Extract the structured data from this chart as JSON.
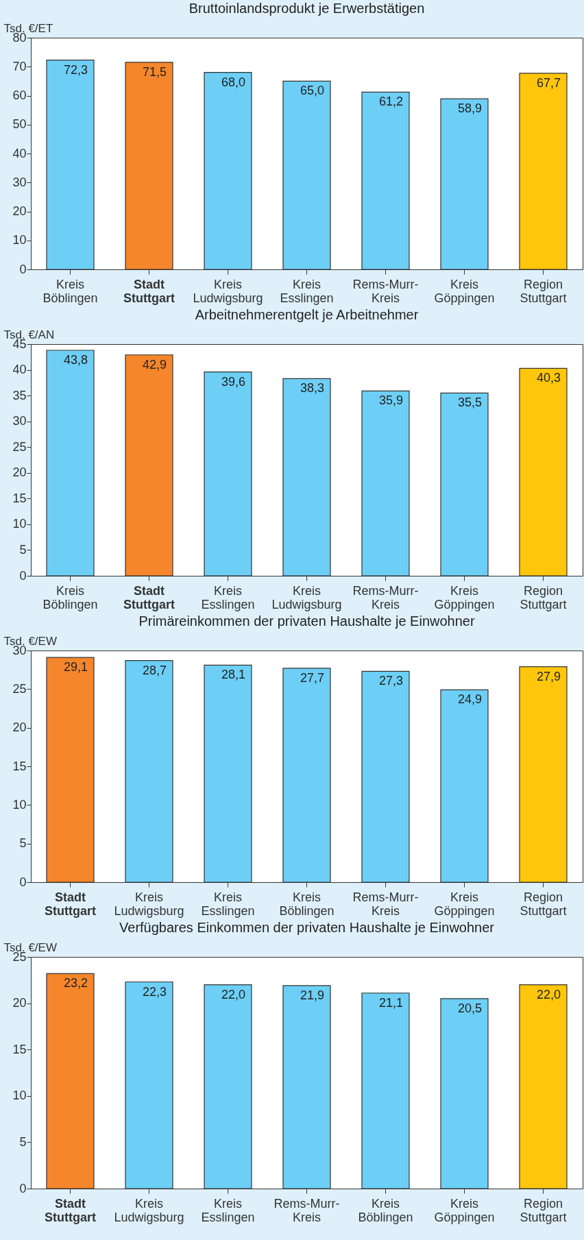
{
  "chart_data": [
    {
      "type": "bar",
      "title": "Bruttoinlandsprodukt je Erwerbstätigen",
      "ylabel": "Tsd. €/ET",
      "categories": [
        "Kreis Böblingen",
        "Stadt Stuttgart",
        "Kreis Ludwigsburg",
        "Kreis Esslingen",
        "Rems-Murr-Kreis",
        "Kreis Göppingen",
        "Region Stuttgart"
      ],
      "values": [
        72.3,
        71.5,
        68.0,
        65.0,
        61.2,
        58.9,
        67.7
      ],
      "value_labels": [
        "72,3",
        "71,5",
        "68,0",
        "65,0",
        "61,2",
        "58,9",
        "67,7"
      ],
      "colors": [
        "#6dcff6",
        "#f5862b",
        "#6dcff6",
        "#6dcff6",
        "#6dcff6",
        "#6dcff6",
        "#ffc60b"
      ],
      "ylim": [
        0,
        80
      ],
      "yticks": [
        0,
        10,
        20,
        30,
        40,
        50,
        60,
        70,
        80
      ],
      "grid": false
    },
    {
      "type": "bar",
      "title": "Arbeitnehmerentgelt je Arbeitnehmer",
      "ylabel": "Tsd. €/AN",
      "categories": [
        "Kreis Böblingen",
        "Stadt Stuttgart",
        "Kreis Esslingen",
        "Kreis Ludwigsburg",
        "Rems-Murr-Kreis",
        "Kreis Göppingen",
        "Region Stuttgart"
      ],
      "values": [
        43.8,
        42.9,
        39.6,
        38.3,
        35.9,
        35.5,
        40.3
      ],
      "value_labels": [
        "43,8",
        "42,9",
        "39,6",
        "38,3",
        "35,9",
        "35,5",
        "40,3"
      ],
      "colors": [
        "#6dcff6",
        "#f5862b",
        "#6dcff6",
        "#6dcff6",
        "#6dcff6",
        "#6dcff6",
        "#ffc60b"
      ],
      "ylim": [
        0,
        45
      ],
      "yticks": [
        0,
        5,
        10,
        15,
        20,
        25,
        30,
        35,
        40,
        45
      ],
      "grid": false
    },
    {
      "type": "bar",
      "title": "Primäreinkommen der privaten Haushalte je Einwohner",
      "ylabel": "Tsd. €/EW",
      "categories": [
        "Stadt Stuttgart",
        "Kreis Ludwigsburg",
        "Kreis Esslingen",
        "Kreis Böblingen",
        "Rems-Murr-Kreis",
        "Kreis Göppingen",
        "Region Stuttgart"
      ],
      "values": [
        29.1,
        28.7,
        28.1,
        27.7,
        27.3,
        24.9,
        27.9
      ],
      "value_labels": [
        "29,1",
        "28,7",
        "28,1",
        "27,7",
        "27,3",
        "24,9",
        "27,9"
      ],
      "colors": [
        "#f5862b",
        "#6dcff6",
        "#6dcff6",
        "#6dcff6",
        "#6dcff6",
        "#6dcff6",
        "#ffc60b"
      ],
      "ylim": [
        0,
        30
      ],
      "yticks": [
        0,
        5,
        10,
        15,
        20,
        25,
        30
      ],
      "grid": false
    },
    {
      "type": "bar",
      "title": "Verfügbares Einkommen der privaten Haushalte je Einwohner",
      "ylabel": "Tsd. €/EW",
      "categories": [
        "Stadt Stuttgart",
        "Kreis Ludwigsburg",
        "Kreis Esslingen",
        "Rems-Murr-Kreis",
        "Kreis Böblingen",
        "Kreis Göppingen",
        "Region Stuttgart"
      ],
      "values": [
        23.2,
        22.3,
        22.0,
        21.9,
        21.1,
        20.5,
        22.0
      ],
      "value_labels": [
        "23,2",
        "22,3",
        "22,0",
        "21,9",
        "21,1",
        "20,5",
        "22,0"
      ],
      "colors": [
        "#f5862b",
        "#6dcff6",
        "#6dcff6",
        "#6dcff6",
        "#6dcff6",
        "#6dcff6",
        "#ffc60b"
      ],
      "ylim": [
        0,
        25
      ],
      "yticks": [
        0,
        5,
        10,
        15,
        20,
        25
      ],
      "grid": false
    }
  ]
}
